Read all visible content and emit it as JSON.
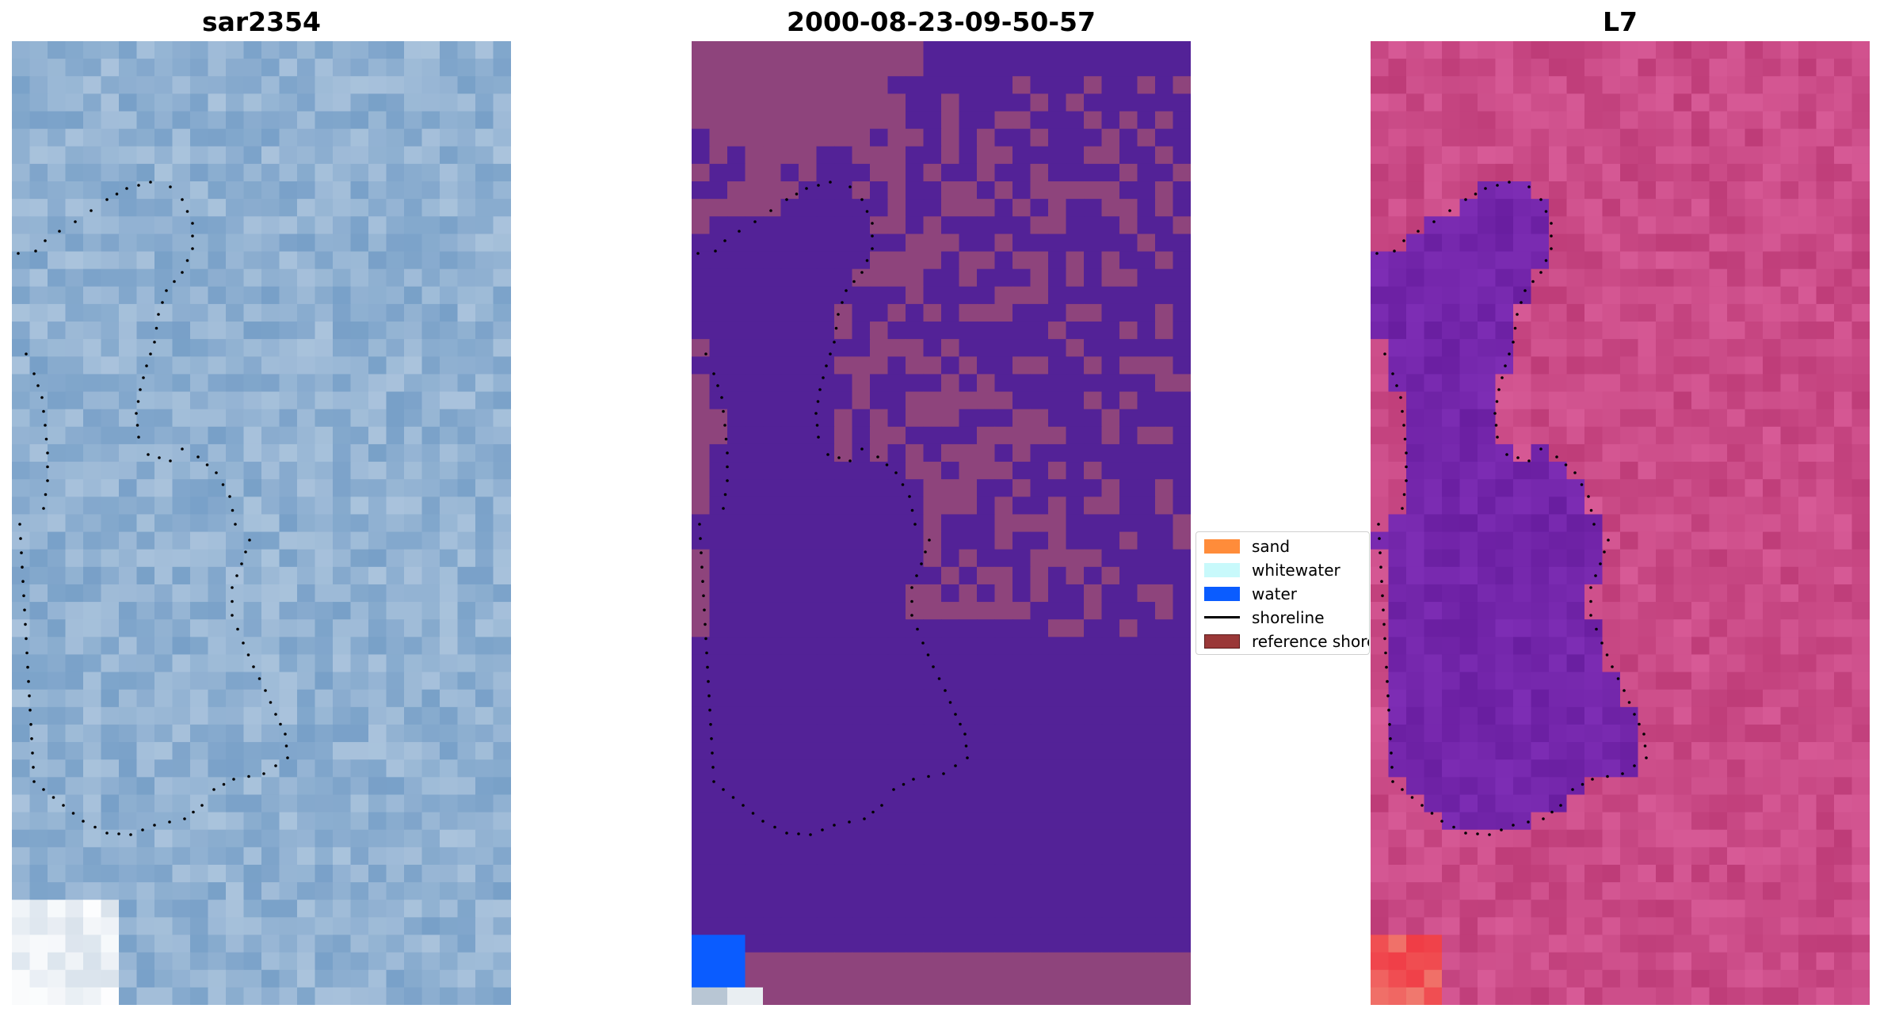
{
  "panels": [
    {
      "title": "sar2354"
    },
    {
      "title": "2000-08-23-09-50-57"
    },
    {
      "title": "L7"
    }
  ],
  "legend": {
    "items": [
      {
        "label": "sand",
        "color": "#ff8c3a",
        "kind": "patch"
      },
      {
        "label": "whitewater",
        "color": "#c8f9fb",
        "kind": "patch"
      },
      {
        "label": "water",
        "color": "#0a5cff",
        "kind": "patch"
      },
      {
        "label": "shoreline",
        "color": "#000000",
        "kind": "line"
      },
      {
        "label": "reference shoreline",
        "color": "#9a3838",
        "kind": "patch"
      }
    ]
  },
  "colors": {
    "classified_water": "#532297",
    "classified_land": "#8e447c",
    "sar_base": "#7aa4cc",
    "l7_water": "#6f1ea0",
    "l7_land": "#c2497e"
  }
}
